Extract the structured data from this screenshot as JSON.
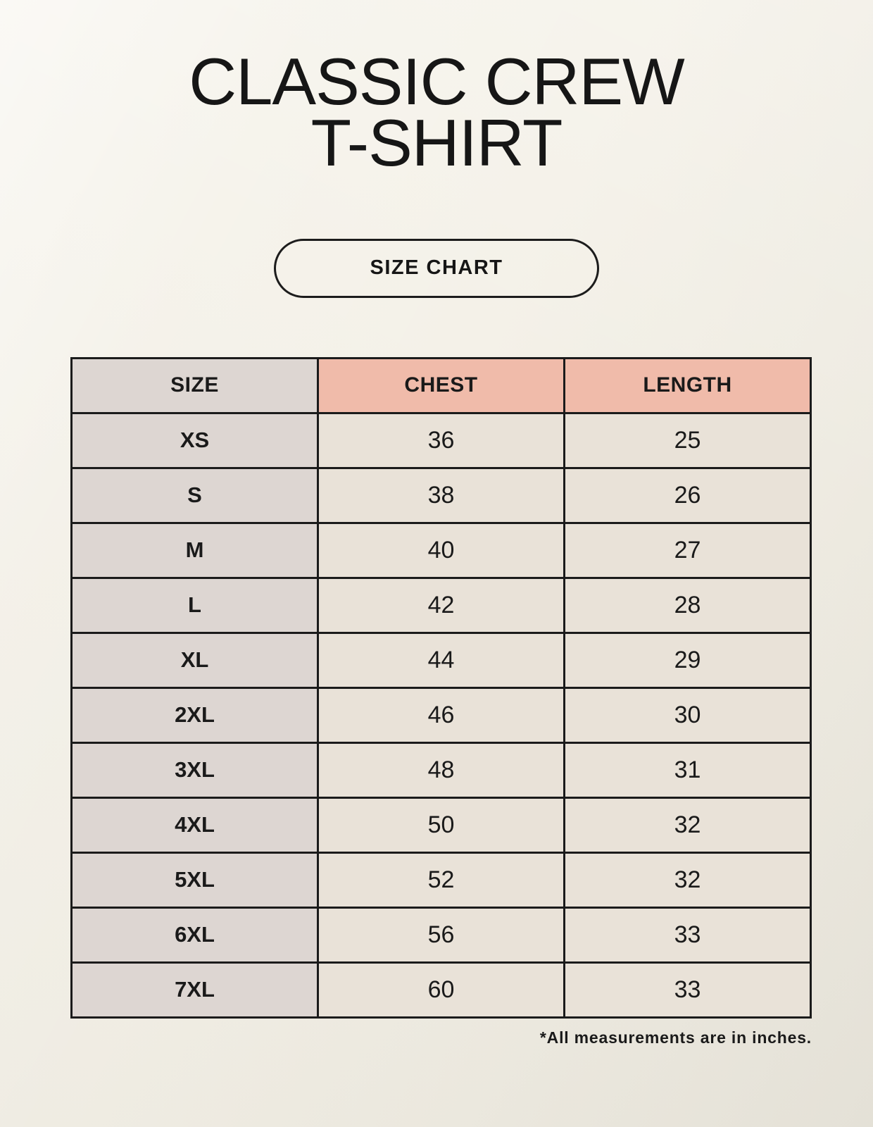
{
  "title": {
    "line1": "CLASSIC CREW",
    "line2": "T-SHIRT"
  },
  "button": {
    "label": "SIZE CHART"
  },
  "table": {
    "columns": [
      "SIZE",
      "CHEST",
      "LENGTH"
    ],
    "rows": [
      {
        "size": "XS",
        "chest": "36",
        "length": "25"
      },
      {
        "size": "S",
        "chest": "38",
        "length": "26"
      },
      {
        "size": "M",
        "chest": "40",
        "length": "27"
      },
      {
        "size": "L",
        "chest": "42",
        "length": "28"
      },
      {
        "size": "XL",
        "chest": "44",
        "length": "29"
      },
      {
        "size": "2XL",
        "chest": "46",
        "length": "30"
      },
      {
        "size": "3XL",
        "chest": "48",
        "length": "31"
      },
      {
        "size": "4XL",
        "chest": "50",
        "length": "32"
      },
      {
        "size": "5XL",
        "chest": "52",
        "length": "32"
      },
      {
        "size": "6XL",
        "chest": "56",
        "length": "33"
      },
      {
        "size": "7XL",
        "chest": "60",
        "length": "33"
      }
    ]
  },
  "footnote": "*All measurements are in inches.",
  "colors": {
    "background": "#f4f1e8",
    "header_accent": "#f0bbaa",
    "size_column": "#ddd6d2",
    "data_cell": "#e9e2d8",
    "border": "#1b1b1b"
  }
}
